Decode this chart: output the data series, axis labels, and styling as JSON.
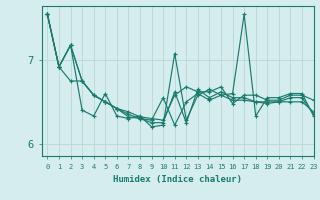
{
  "xlabel": "Humidex (Indice chaleur)",
  "xlim": [
    -0.5,
    23
  ],
  "ylim": [
    5.85,
    7.65
  ],
  "yticks": [
    6,
    7
  ],
  "xticks": [
    0,
    1,
    2,
    3,
    4,
    5,
    6,
    7,
    8,
    9,
    10,
    11,
    12,
    13,
    14,
    15,
    16,
    17,
    18,
    19,
    20,
    21,
    22,
    23
  ],
  "bg_color": "#d5eeed",
  "line_color": "#1a7a6e",
  "grid_color": "#b8d8d5",
  "figsize": [
    3.2,
    2.0
  ],
  "dpi": 100,
  "series": [
    [
      7.55,
      6.92,
      6.75,
      6.75,
      6.58,
      6.5,
      6.42,
      6.35,
      6.3,
      6.28,
      6.55,
      6.22,
      6.5,
      6.6,
      6.52,
      6.58,
      6.52,
      6.52,
      6.5,
      6.48,
      6.5,
      6.5,
      6.5,
      6.38
    ],
    [
      7.55,
      6.92,
      7.18,
      6.4,
      6.33,
      6.6,
      6.33,
      6.3,
      6.33,
      6.2,
      6.22,
      7.08,
      6.28,
      6.58,
      6.65,
      6.58,
      6.6,
      7.55,
      6.33,
      6.55,
      6.55,
      6.6,
      6.6,
      6.33
    ],
    [
      7.55,
      6.92,
      7.18,
      6.75,
      6.58,
      6.5,
      6.42,
      6.38,
      6.32,
      6.3,
      6.28,
      6.58,
      6.68,
      6.62,
      6.62,
      6.68,
      6.48,
      6.58,
      6.58,
      6.52,
      6.52,
      6.58,
      6.58,
      6.52
    ],
    [
      7.55,
      6.92,
      7.18,
      6.75,
      6.58,
      6.5,
      6.42,
      6.32,
      6.3,
      6.25,
      6.25,
      6.62,
      6.25,
      6.65,
      6.55,
      6.62,
      6.55,
      6.55,
      6.5,
      6.5,
      6.5,
      6.55,
      6.55,
      6.35
    ]
  ]
}
